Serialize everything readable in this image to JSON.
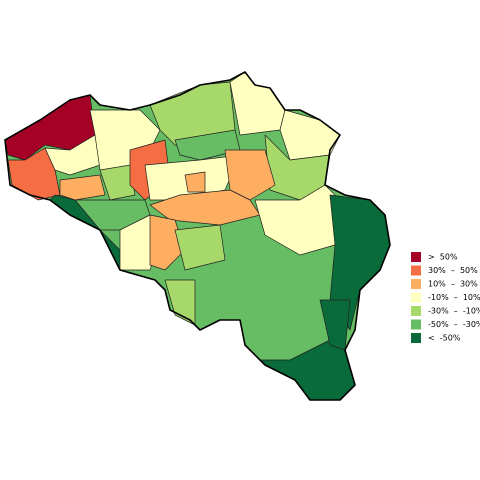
{
  "legend": {
    "items": [
      {
        "label": ">  50%",
        "color": "#a50026"
      },
      {
        "label": "30%  –  50%",
        "color": "#f46d43"
      },
      {
        "label": "10%  –  30%",
        "color": "#fdae61"
      },
      {
        "label": "-10%  –  10%",
        "color": "#ffffbf"
      },
      {
        "label": "-30%  –  -10%",
        "color": "#a6d96a"
      },
      {
        "label": "-50%  –  -30%",
        "color": "#66bd63"
      },
      {
        "label": "<  -50%",
        "color": "#0a6b3a"
      }
    ]
  }
}
